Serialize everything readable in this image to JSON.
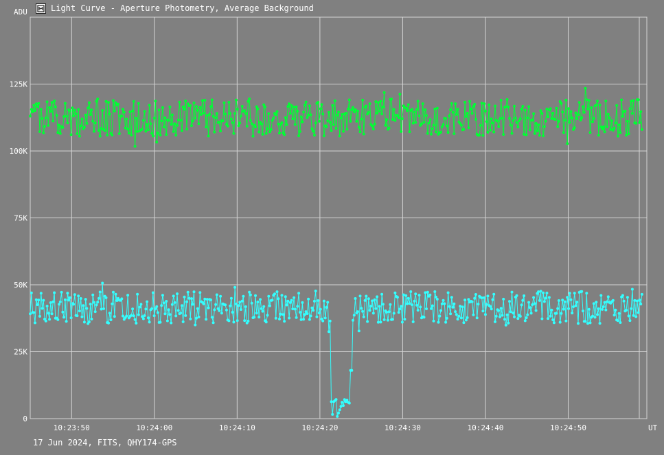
{
  "window": {
    "title": "Light Curve - Aperture Photometry, Average Background",
    "footer": "17 Jun 2024, FITS, QHY174-GPS",
    "icon": "chart-app-icon"
  },
  "colors": {
    "background": "#808080",
    "grid": "#d4d4d4",
    "text": "#ffffff",
    "target": "#00ff33",
    "comparison": "#33ffff"
  },
  "chart_data": {
    "type": "line",
    "xlabel": "UT",
    "ylabel": "ADU",
    "x_unit": "seconds after 10:23:45 UT",
    "xlim": [
      0,
      55.4
    ],
    "ylim": [
      0,
      150000
    ],
    "xticks": [
      {
        "value": 5,
        "label": "10:23:50"
      },
      {
        "value": 15,
        "label": "10:24:00"
      },
      {
        "value": 25,
        "label": "10:24:10"
      },
      {
        "value": 35,
        "label": "10:24:20"
      },
      {
        "value": 45,
        "label": "10:24:30"
      },
      {
        "value": 55,
        "label": "10:24:40"
      },
      {
        "value": 65,
        "label": "10:24:50"
      }
    ],
    "xlim_display": [
      0,
      74.5
    ],
    "yticks": [
      {
        "value": 0,
        "label": "0"
      },
      {
        "value": 25000,
        "label": "25K"
      },
      {
        "value": 50000,
        "label": "50K"
      },
      {
        "value": 75000,
        "label": "75K"
      },
      {
        "value": 100000,
        "label": "100K"
      },
      {
        "value": 125000,
        "label": "125K"
      }
    ],
    "grid": true,
    "series": [
      {
        "role": "upper-series",
        "color": "#00ff33",
        "t_start": 0.0,
        "t_step": 0.1455,
        "mean": 112500,
        "spread": 7000,
        "dips": []
      },
      {
        "role": "lower-series",
        "color": "#33ffff",
        "t_start": 0.0,
        "t_step": 0.1455,
        "mean": 41500,
        "spread": 6000,
        "dips": [
          {
            "t_from": 36.3,
            "t_to": 38.6,
            "level": 4000
          }
        ]
      }
    ]
  }
}
